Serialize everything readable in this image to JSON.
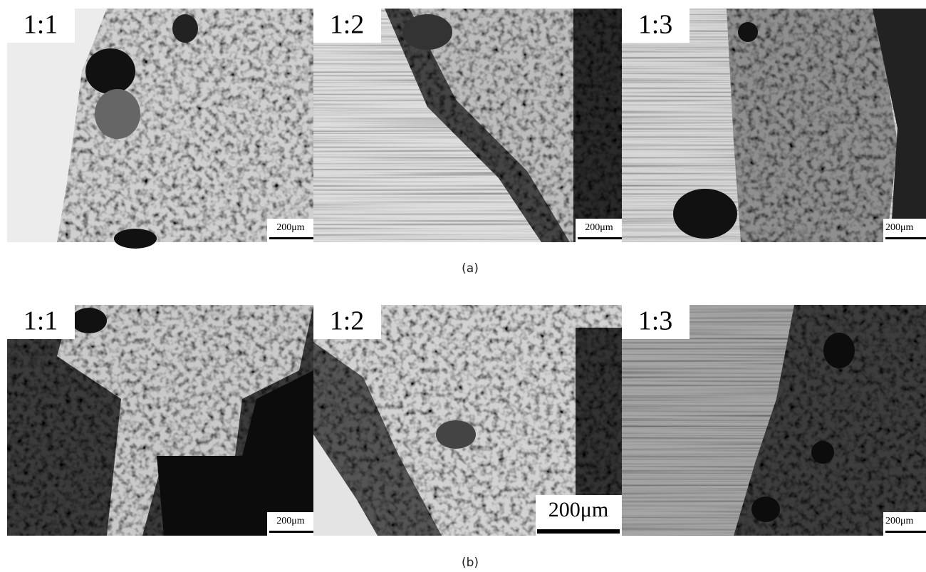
{
  "figure": {
    "rows": [
      {
        "caption": "(a)",
        "panels": [
          {
            "label": "1:1",
            "scale": "200μm"
          },
          {
            "label": "1:2",
            "scale": "200μm"
          },
          {
            "label": "1:3",
            "scale": "200μm"
          }
        ]
      },
      {
        "caption": "(b)",
        "panels": [
          {
            "label": "1:1",
            "scale": "200μm"
          },
          {
            "label": "1:2",
            "scale": "200μm"
          },
          {
            "label": "1:3",
            "scale": "200μm"
          }
        ]
      }
    ]
  }
}
